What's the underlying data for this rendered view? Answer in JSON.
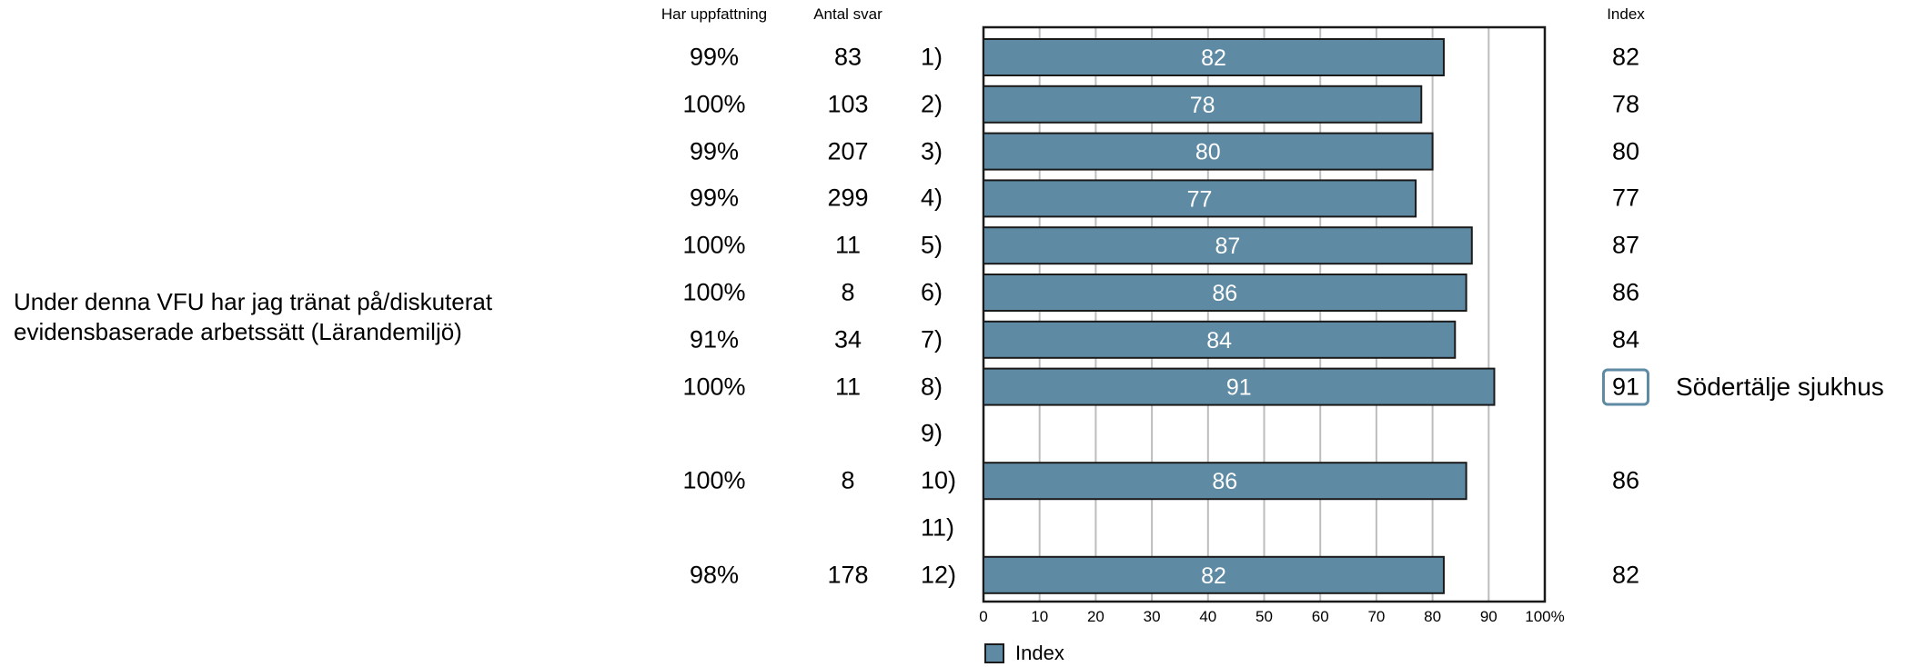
{
  "question": "Under denna VFU har jag tränat på/diskuterat\nevidensbaserade arbetssätt (Lärandemiljö)",
  "headers": {
    "opinion": "Har uppfattning",
    "answers": "Antal svar",
    "index": "Index"
  },
  "rows": [
    {
      "label": "1)",
      "opinion": "99%",
      "answers": "83",
      "index": "82"
    },
    {
      "label": "2)",
      "opinion": "100%",
      "answers": "103",
      "index": "78"
    },
    {
      "label": "3)",
      "opinion": "99%",
      "answers": "207",
      "index": "80"
    },
    {
      "label": "4)",
      "opinion": "99%",
      "answers": "299",
      "index": "77"
    },
    {
      "label": "5)",
      "opinion": "100%",
      "answers": "11",
      "index": "87"
    },
    {
      "label": "6)",
      "opinion": "100%",
      "answers": "8",
      "index": "86"
    },
    {
      "label": "7)",
      "opinion": "91%",
      "answers": "34",
      "index": "84"
    },
    {
      "label": "8)",
      "opinion": "100%",
      "answers": "11",
      "index": "91"
    },
    {
      "label": "9)",
      "opinion": "",
      "answers": "",
      "index": ""
    },
    {
      "label": "10)",
      "opinion": "100%",
      "answers": "8",
      "index": "86"
    },
    {
      "label": "11)",
      "opinion": "",
      "answers": "",
      "index": ""
    },
    {
      "label": "12)",
      "opinion": "98%",
      "answers": "178",
      "index": "82"
    }
  ],
  "highlight": {
    "row": "8)",
    "label": "Södertälje sjukhus"
  },
  "legend": {
    "label": "Index"
  },
  "colors": {
    "bar": "#5f8aa4",
    "bar_border": "#1a1a1a",
    "grid": "#bdbdbd",
    "highlight_box": "#5f8aa4"
  },
  "chart_data": {
    "type": "bar",
    "orientation": "horizontal",
    "categories": [
      "1)",
      "2)",
      "3)",
      "4)",
      "5)",
      "6)",
      "7)",
      "8)",
      "9)",
      "10)",
      "11)",
      "12)"
    ],
    "series": [
      {
        "name": "Index",
        "values": [
          82,
          78,
          80,
          77,
          87,
          86,
          84,
          91,
          null,
          86,
          null,
          82
        ]
      }
    ],
    "xlim": [
      0,
      100
    ],
    "xticks": [
      "0",
      "10",
      "20",
      "30",
      "40",
      "50",
      "60",
      "70",
      "80",
      "90",
      "100%"
    ],
    "grid": true,
    "legend_position": "bottom-left"
  }
}
